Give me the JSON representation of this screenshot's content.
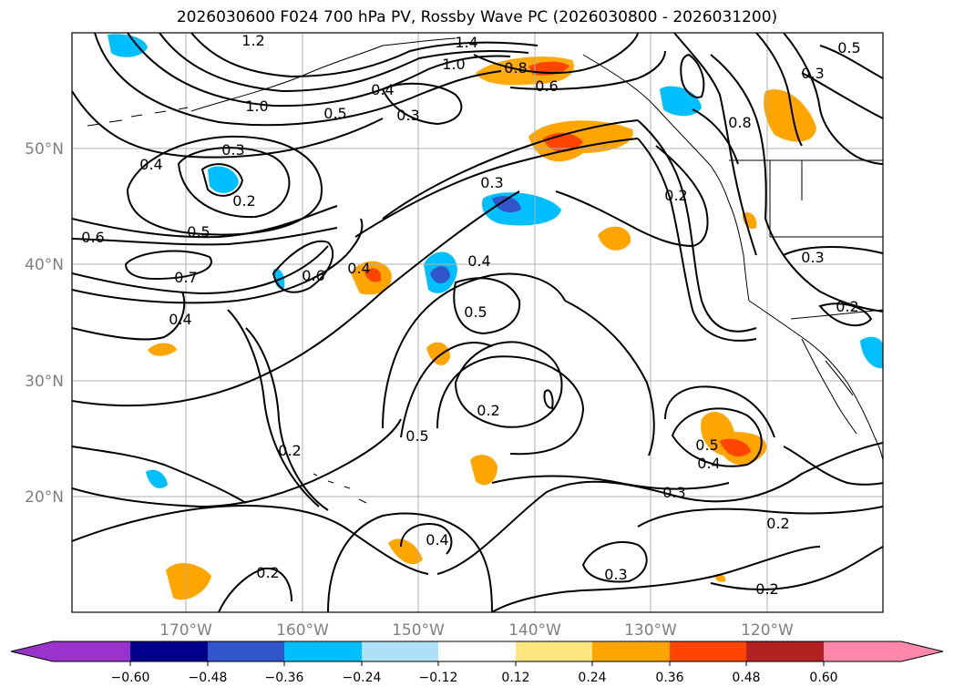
{
  "title": "2026030600 F024 700 hPa PV, Rossby Wave PC (2026030800 - 2026031200)",
  "axes": {
    "lat_labels": [
      "50°N",
      "40°N",
      "30°N",
      "20°N"
    ],
    "lon_labels": [
      "170°W",
      "160°W",
      "150°W",
      "140°W",
      "130°W",
      "120°W"
    ]
  },
  "contour_labels": [
    "1.2",
    "1.4",
    "1.0",
    "0.5",
    "0.3",
    "0.8",
    "0.6",
    "1.0",
    "0.5",
    "0.4",
    "0.3",
    "0.3",
    "0.4",
    "0.2",
    "0.6",
    "0.5",
    "0.3",
    "0.7",
    "0.6",
    "0.4",
    "0.4",
    "0.4",
    "0.5",
    "0.2",
    "0.5",
    "0.2",
    "0.2",
    "0.3",
    "0.4",
    "0.5",
    "0.2",
    "0.3",
    "0.2",
    "0.3",
    "0.8",
    "0.2",
    "0.2"
  ],
  "colorbar": {
    "tick_labels": [
      "−0.60",
      "−0.48",
      "−0.36",
      "−0.24",
      "−0.12",
      "0.12",
      "0.24",
      "0.36",
      "0.48",
      "0.60"
    ],
    "colors": [
      "#9933cc",
      "#00008b",
      "#3355cc",
      "#00bfff",
      "#aee0f8",
      "#ffffff",
      "#ffe680",
      "#ffa500",
      "#ff4500",
      "#b22222",
      "#ff88aa"
    ]
  }
}
